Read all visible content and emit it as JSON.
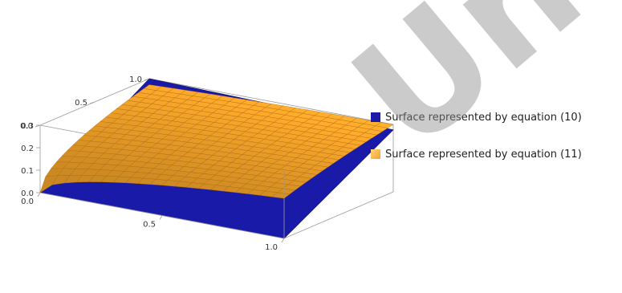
{
  "chart_data": {
    "type": "surface3d",
    "x_ticks": [
      0.0,
      0.5,
      1.0
    ],
    "y_ticks": [
      0.0,
      0.5,
      1.0
    ],
    "z_ticks": [
      0.0,
      0.1,
      0.2,
      0.3
    ],
    "x_tick_labels": [
      "0.0",
      "0.5",
      "1.0"
    ],
    "y_tick_labels": [
      "0.0",
      "0.5",
      "1.0"
    ],
    "z_tick_labels": [
      "0.0",
      "0.1",
      "0.2",
      "0.3"
    ],
    "grid": false,
    "legend_position": "right",
    "series": [
      {
        "name": "Surface represented by equation (10)",
        "color": "#1a1aa8"
      },
      {
        "name": "Surface represented by equation (11)",
        "color": "#f7a12b"
      }
    ]
  },
  "watermark_text": "Univer"
}
